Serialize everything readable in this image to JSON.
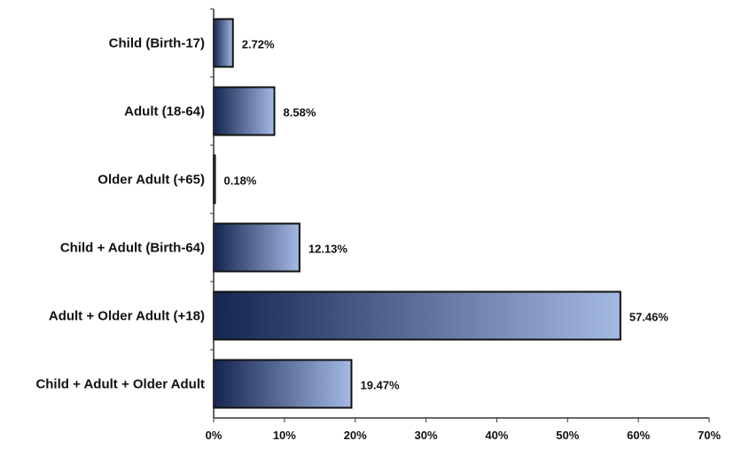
{
  "chart_data": {
    "type": "bar",
    "orientation": "horizontal",
    "categories": [
      "Child (Birth-17)",
      "Adult (18-64)",
      "Older Adult (+65)",
      "Child + Adult (Birth-64)",
      "Adult + Older Adult (+18)",
      "Child + Adult + Older Adult"
    ],
    "values": [
      2.72,
      8.58,
      0.18,
      12.13,
      57.46,
      19.47
    ],
    "value_labels": [
      "2.72%",
      "8.58%",
      "0.18%",
      "12.13%",
      "57.46%",
      "19.47%"
    ],
    "xticks": [
      0,
      10,
      20,
      30,
      40,
      50,
      60,
      70
    ],
    "xtick_labels": [
      "0%",
      "10%",
      "20%",
      "30%",
      "40%",
      "50%",
      "60%",
      "70%"
    ],
    "xlim": [
      0,
      70
    ],
    "title": "",
    "xlabel": "",
    "ylabel": "",
    "grid": false,
    "legend": "none",
    "colors": {
      "bar_dark": "#14254f",
      "bar_light": "#a4b9e4",
      "bar_border": "#111111",
      "axis": "#333333"
    }
  }
}
